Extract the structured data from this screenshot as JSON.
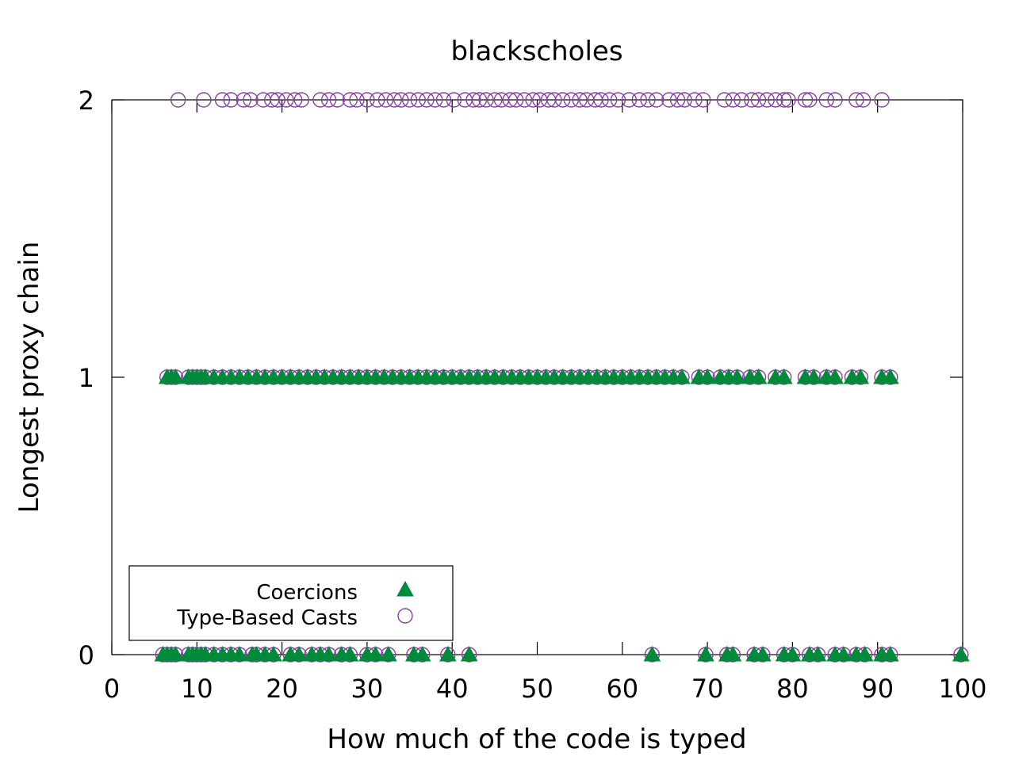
{
  "chart_data": {
    "type": "scatter",
    "title": "blackscholes",
    "xlabel": "How much of the code is typed",
    "ylabel": "Longest proxy chain",
    "xlim": [
      0,
      100
    ],
    "ylim": [
      0,
      2
    ],
    "xticks": [
      0,
      10,
      20,
      30,
      40,
      50,
      60,
      70,
      80,
      90,
      100
    ],
    "yticks": [
      0,
      1,
      2
    ],
    "grid": false,
    "legend_position": "bottom-left",
    "series": [
      {
        "name": "Coercions",
        "marker": "triangle",
        "color": "#008a3a",
        "points_y0": [
          6,
          6.5,
          7,
          7.5,
          9,
          9.5,
          10,
          10.5,
          11,
          12,
          13,
          14,
          15,
          16.5,
          17,
          18,
          19,
          21,
          22,
          23.5,
          24.5,
          25.5,
          27,
          28,
          30,
          31,
          32.5,
          35.5,
          36.5,
          39.5,
          42,
          63.5,
          69.8,
          72.3,
          73,
          75.5,
          76.5,
          79,
          80,
          82,
          83,
          85,
          86,
          87.5,
          88.5,
          90.5,
          91.5,
          99.8
        ],
        "points_y1": [
          6.5,
          7,
          7.5,
          9,
          9.5,
          10,
          10.5,
          11,
          12,
          13,
          14,
          15,
          16,
          17,
          18,
          19,
          20,
          21,
          22,
          23,
          24,
          25,
          26,
          27,
          28,
          29,
          30,
          31,
          32,
          33,
          34,
          35,
          36,
          37,
          38,
          39,
          40,
          41,
          42,
          43,
          44,
          45,
          46,
          47,
          48,
          49,
          50,
          51,
          52,
          53,
          54,
          55,
          56,
          57,
          58,
          59,
          60,
          61,
          62,
          63,
          64,
          65,
          66,
          67,
          69,
          70,
          71.5,
          72.5,
          73.5,
          75,
          76,
          78,
          79,
          81.5,
          82.5,
          84,
          85,
          87,
          88,
          90.5,
          91.5
        ]
      },
      {
        "name": "Type-Based Casts",
        "marker": "open-circle",
        "color": "#8b3ea6",
        "points_y0": [
          6,
          6.5,
          7,
          7.5,
          9,
          9.5,
          10,
          10.5,
          11,
          12,
          13,
          14,
          15,
          16.5,
          17,
          18,
          19,
          21,
          22,
          23.5,
          24.5,
          25.5,
          27,
          28,
          30,
          31,
          32.5,
          35.5,
          36.5,
          39.5,
          42,
          63.5,
          69.8,
          72.3,
          73,
          75.5,
          76.5,
          79,
          80,
          82,
          83,
          85,
          86,
          87.5,
          88.5,
          90.5,
          91.5,
          99.8
        ],
        "points_y1": [
          6.5,
          7,
          7.5,
          9,
          9.5,
          10,
          10.5,
          11,
          12,
          13,
          14,
          15,
          16,
          17,
          18,
          19,
          20,
          21,
          22,
          23,
          24,
          25,
          26,
          27,
          28,
          29,
          30,
          31,
          32,
          33,
          34,
          35,
          36,
          37,
          38,
          39,
          40,
          41,
          42,
          43,
          44,
          45,
          46,
          47,
          48,
          49,
          50,
          51,
          52,
          53,
          54,
          55,
          56,
          57,
          58,
          59,
          60,
          61,
          62,
          63,
          64,
          65,
          66,
          67,
          69,
          70,
          71.5,
          72.5,
          73.5,
          75,
          76,
          78,
          79,
          81.5,
          82.5,
          84,
          85,
          87,
          88,
          90.5,
          91.5
        ],
        "points_y2": [
          7.8,
          10.8,
          13,
          14,
          15.5,
          16.3,
          17.8,
          18.8,
          19.5,
          20.5,
          21.5,
          22.3,
          24.5,
          25.5,
          26.5,
          28,
          28.8,
          30,
          31.2,
          32.2,
          33.2,
          34,
          35,
          36,
          37,
          38,
          39,
          40.2,
          41.5,
          42.5,
          43.2,
          44,
          45,
          45.8,
          46.8,
          47.5,
          48.5,
          49.5,
          50.3,
          51.3,
          52,
          53,
          54,
          55,
          55.8,
          56.8,
          57.5,
          58.5,
          59.5,
          60.8,
          62,
          63,
          64,
          65.5,
          66.5,
          67.3,
          68.5,
          69.5,
          72,
          73,
          74,
          75.2,
          76,
          77,
          78,
          79,
          79.5,
          81.5,
          82,
          84,
          85,
          87.5,
          88.3,
          90.5
        ]
      }
    ]
  }
}
